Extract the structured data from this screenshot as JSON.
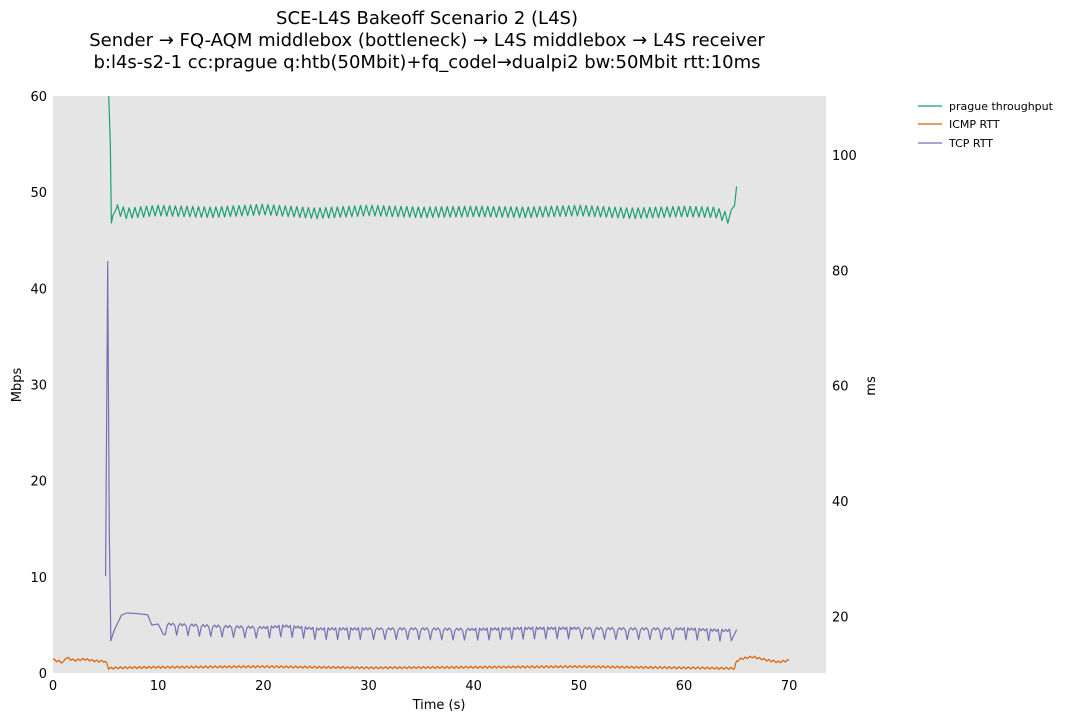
{
  "chart_data": {
    "type": "line",
    "title": [
      "SCE-L4S Bakeoff Scenario 2 (L4S)",
      "Sender → FQ-AQM middlebox (bottleneck) → L4S middlebox → L4S receiver",
      "b:l4s-s2-1 cc:prague q:htb(50Mbit)+fq_codel→dualpi2 bw:50Mbit rtt:10ms"
    ],
    "xlabel": "Time (s)",
    "ylabel_left": "Mbps",
    "ylabel_right": "ms",
    "xlim": [
      0,
      73.5
    ],
    "ylim_left": [
      0,
      60
    ],
    "ylim_right": [
      10.2,
      110.2
    ],
    "xticks": [
      0,
      10,
      20,
      30,
      40,
      50,
      60,
      70
    ],
    "yticks_left": [
      0,
      10,
      20,
      30,
      40,
      50,
      60
    ],
    "yticks_right": [
      20,
      40,
      60,
      80,
      100
    ],
    "background": "#e5e5e5",
    "legend_placement": "outside-top-right",
    "series": [
      {
        "name": "prague throughput",
        "axis": "left",
        "color": "#1b9e77",
        "points": [
          [
            5.3,
            60
          ],
          [
            5.45,
            55
          ],
          [
            5.55,
            46.8
          ],
          [
            5.7,
            47.6
          ],
          [
            6.0,
            48.2
          ],
          [
            7,
            47.8
          ],
          [
            10,
            48.1
          ],
          [
            15,
            47.9
          ],
          [
            20,
            48.2
          ],
          [
            25,
            47.8
          ],
          [
            30,
            48.1
          ],
          [
            35,
            47.9
          ],
          [
            40,
            48.0
          ],
          [
            45,
            47.9
          ],
          [
            50,
            48.1
          ],
          [
            55,
            47.8
          ],
          [
            60,
            48.0
          ],
          [
            63,
            47.9
          ],
          [
            64.2,
            47.3
          ],
          [
            64.5,
            48.2
          ],
          [
            64.8,
            48.6
          ],
          [
            65.0,
            50.6
          ]
        ],
        "oscillation": {
          "from": 6.0,
          "to": 64.3,
          "period": 0.55,
          "amplitude": 0.55
        }
      },
      {
        "name": "ICMP RTT",
        "axis": "right",
        "color": "#d95f02",
        "points": [
          [
            0,
            12.5
          ],
          [
            1,
            12.0
          ],
          [
            1.2,
            12.9
          ],
          [
            2,
            12.4
          ],
          [
            3,
            12.6
          ],
          [
            4,
            12.3
          ],
          [
            5,
            12.2
          ],
          [
            5.3,
            11.0
          ],
          [
            6,
            11.1
          ],
          [
            10,
            11.2
          ],
          [
            20,
            11.3
          ],
          [
            30,
            11.1
          ],
          [
            40,
            11.2
          ],
          [
            50,
            11.3
          ],
          [
            60,
            11.1
          ],
          [
            64.8,
            11.0
          ],
          [
            65.0,
            12.3
          ],
          [
            65.5,
            12.7
          ],
          [
            66.5,
            13.0
          ],
          [
            68,
            12.4
          ],
          [
            69,
            12.1
          ],
          [
            70,
            12.4
          ]
        ],
        "oscillation": {
          "from": 0,
          "to": 70,
          "period": 0.45,
          "amplitude": 0.18
        }
      },
      {
        "name": "TCP RTT",
        "axis": "right",
        "color": "#7570b3",
        "points": [
          [
            5.0,
            27
          ],
          [
            5.2,
            81.5
          ],
          [
            5.35,
            35
          ],
          [
            5.5,
            15.8
          ],
          [
            5.8,
            17.5
          ],
          [
            6.5,
            20.2
          ],
          [
            7,
            20.6
          ],
          [
            8,
            20.5
          ],
          [
            9,
            20.3
          ],
          [
            9.4,
            18.5
          ],
          [
            10,
            18.7
          ],
          [
            15,
            18.3
          ],
          [
            20,
            18.0
          ],
          [
            22,
            18.3
          ],
          [
            25,
            17.8
          ],
          [
            30,
            17.8
          ],
          [
            35,
            17.8
          ],
          [
            40,
            17.7
          ],
          [
            45,
            17.9
          ],
          [
            50,
            17.9
          ],
          [
            55,
            17.8
          ],
          [
            60,
            17.8
          ],
          [
            64,
            17.5
          ],
          [
            65,
            17.7
          ]
        ],
        "dips": {
          "from": 10.5,
          "to": 64.5,
          "period": 1.1,
          "depth": 1.8
        }
      }
    ]
  }
}
